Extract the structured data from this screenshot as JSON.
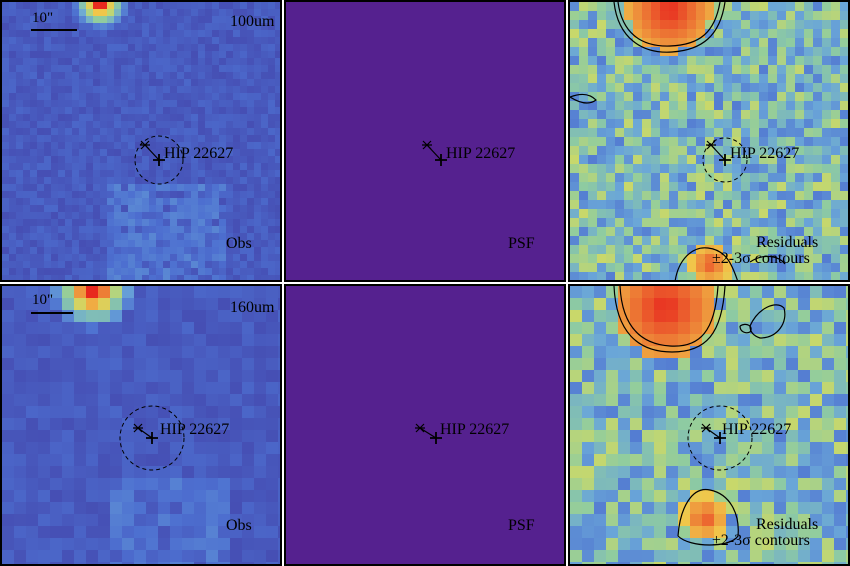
{
  "figure": {
    "target_name": "HIP 22627",
    "scale_bar_label": "10\"",
    "rows": [
      {
        "band": "100um",
        "obs_label": "Obs",
        "psf_label": "PSF",
        "res_label_1": "Residuals",
        "res_label_2": "±2-3σ contours"
      },
      {
        "band": "160um",
        "obs_label": "Obs",
        "psf_label": "PSF",
        "res_label_1": "Residuals",
        "res_label_2": "±2-3σ contours"
      }
    ]
  },
  "colors": {
    "background_purple": "#5b2a8a",
    "obs_pixel": "#5e3394",
    "psf_fill": "#55218f",
    "residual_green": "#9ccf8a",
    "residual_blue": "#5a8fd1",
    "hot_red": "#e8281e",
    "contour": "#000000"
  }
}
